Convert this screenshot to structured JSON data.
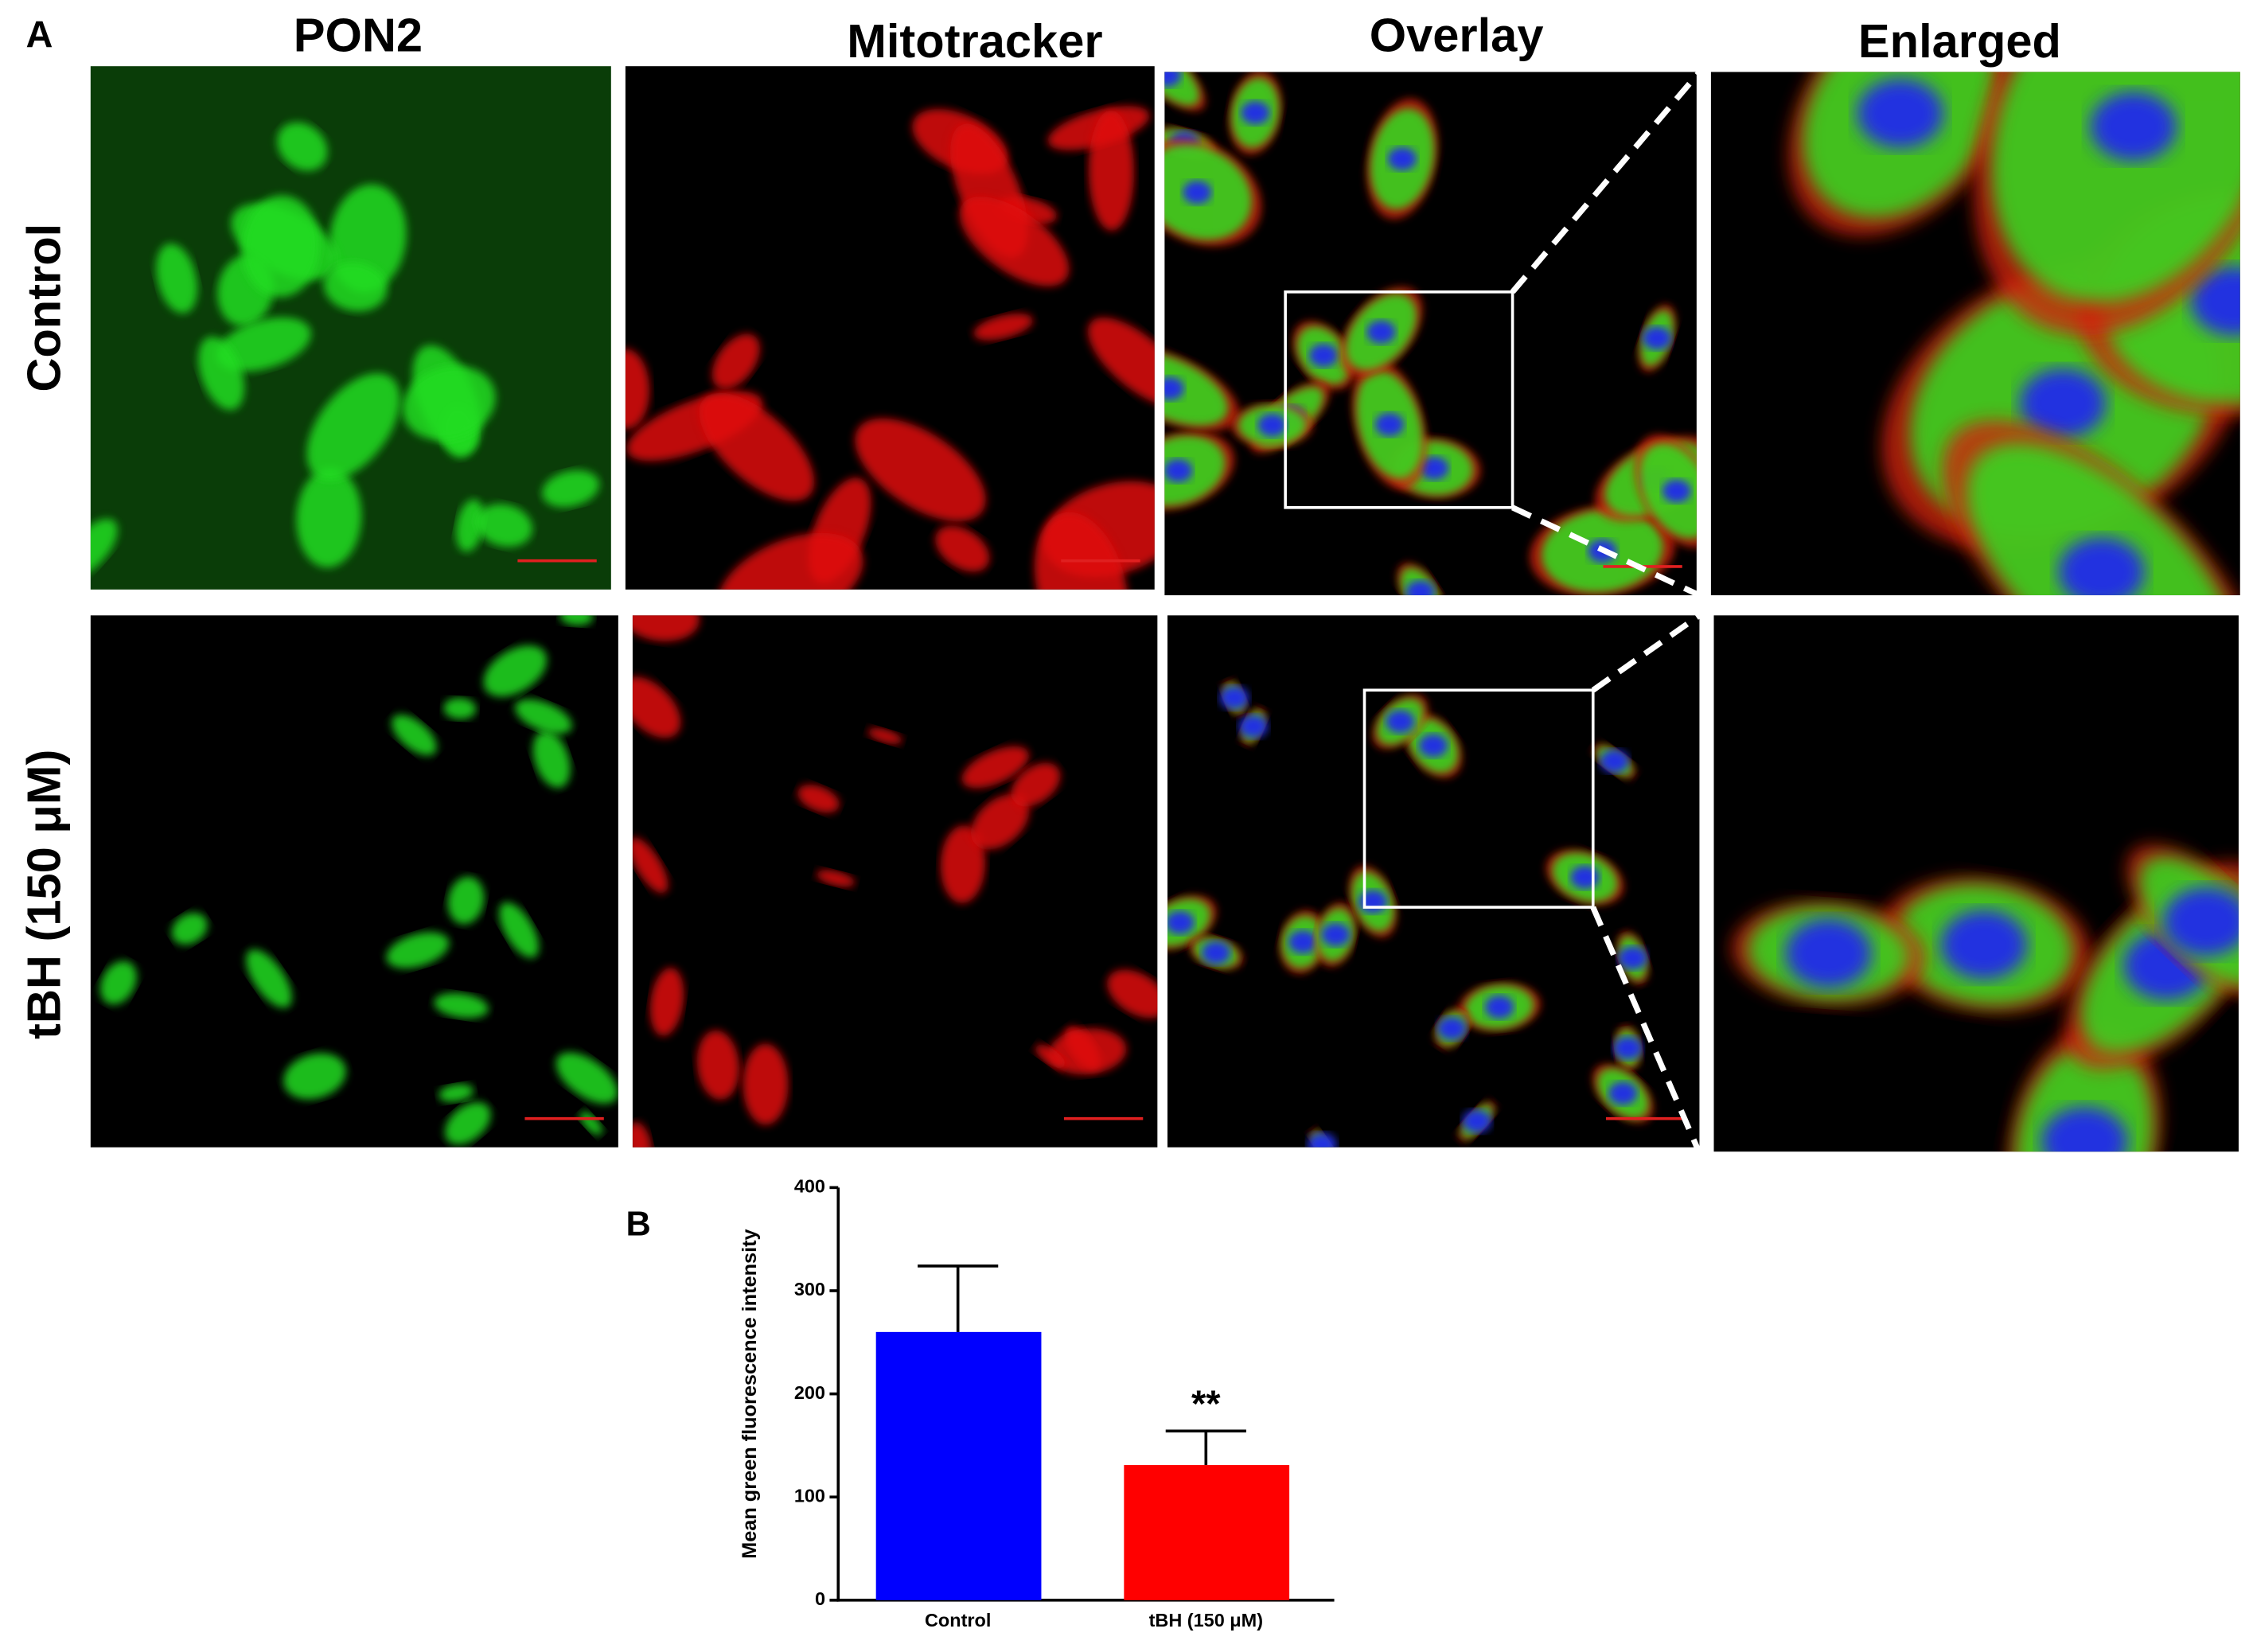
{
  "panel_a": {
    "label": "A",
    "columns": [
      "PON2",
      "Mitotracker",
      "Overlay",
      "Enlarged"
    ],
    "rows": [
      "Control",
      "tBH (150 μM)"
    ]
  },
  "chart_data": {
    "type": "bar",
    "panel_label": "B",
    "y_label": "Mean green fluorescence intensity",
    "categories": [
      "Control",
      "tBH (150 μM)"
    ],
    "values": [
      260,
      131
    ],
    "errors": [
      64,
      33
    ],
    "colors": [
      "#0000ff",
      "#ff0000"
    ],
    "annotations": [
      {
        "category": 1,
        "text": "**"
      }
    ],
    "ylim": [
      0,
      400
    ],
    "yticks": [
      0,
      100,
      200,
      300,
      400
    ]
  }
}
